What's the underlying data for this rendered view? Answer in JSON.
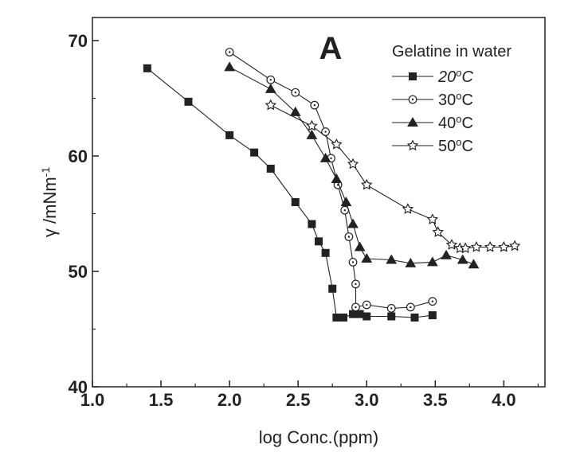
{
  "chart_data": {
    "type": "line",
    "panel_label": "A",
    "xlabel": "log Conc.(ppm)",
    "ylabel": "γ /mNm",
    "ylabel_sup": "-1",
    "xlim": [
      1.0,
      4.3
    ],
    "ylim": [
      40,
      72
    ],
    "x_ticks": [
      1.0,
      1.5,
      2.0,
      2.5,
      3.0,
      3.5,
      4.0
    ],
    "x_tick_labels": [
      "1.0",
      "1.5",
      "2.0",
      "2.5",
      "3.0",
      "3.5",
      "4.0"
    ],
    "y_ticks": [
      40,
      50,
      60,
      70
    ],
    "y_tick_labels": [
      "40",
      "50",
      "60",
      "70"
    ],
    "grid": false,
    "legend": {
      "title": "Gelatine in water",
      "position": "top-right"
    },
    "series": [
      {
        "name": "20",
        "name_sup": "o",
        "name_suffix": "C",
        "italic": true,
        "marker": "square-filled",
        "x": [
          1.4,
          1.7,
          2.0,
          2.18,
          2.3,
          2.48,
          2.6,
          2.65,
          2.7,
          2.75,
          2.78,
          2.83,
          2.9,
          2.95,
          3.0,
          3.18,
          3.35,
          3.48
        ],
        "y": [
          67.6,
          64.7,
          61.8,
          60.3,
          58.9,
          56.0,
          54.1,
          52.6,
          51.6,
          48.5,
          46.0,
          46.0,
          46.3,
          46.3,
          46.1,
          46.1,
          46.0,
          46.2
        ]
      },
      {
        "name": "30",
        "name_sup": "o",
        "name_suffix": "C",
        "italic": false,
        "marker": "circle-dot-open",
        "x": [
          2.0,
          2.3,
          2.48,
          2.62,
          2.7,
          2.74,
          2.79,
          2.84,
          2.87,
          2.9,
          2.92,
          2.92,
          3.0,
          3.18,
          3.32,
          3.48
        ],
        "y": [
          69.0,
          66.6,
          65.5,
          64.4,
          62.1,
          59.8,
          57.5,
          55.3,
          53.0,
          50.8,
          48.9,
          46.9,
          47.1,
          46.8,
          46.9,
          47.4
        ],
        "y_note": ""
      },
      {
        "name": "40",
        "name_sup": "o",
        "name_suffix": "C",
        "italic": false,
        "marker": "triangle-filled",
        "x": [
          2.0,
          2.3,
          2.48,
          2.6,
          2.7,
          2.78,
          2.85,
          2.9,
          2.95,
          3.0,
          3.18,
          3.32,
          3.48,
          3.58,
          3.7,
          3.78
        ],
        "y": [
          67.7,
          65.8,
          63.8,
          61.8,
          59.8,
          58.0,
          56.0,
          54.1,
          52.1,
          51.1,
          51.0,
          50.7,
          50.8,
          51.4,
          51.0,
          50.6
        ]
      },
      {
        "name": "50",
        "name_sup": "o",
        "name_suffix": "C",
        "italic": false,
        "marker": "star-open",
        "x": [
          2.3,
          2.6,
          2.78,
          2.9,
          3.0,
          3.3,
          3.48,
          3.52,
          3.62,
          3.68,
          3.72,
          3.8,
          3.9,
          4.0,
          4.08
        ],
        "y": [
          64.4,
          62.6,
          61.0,
          59.3,
          57.5,
          55.4,
          54.5,
          53.4,
          52.3,
          52.0,
          52.0,
          52.1,
          52.1,
          52.1,
          52.2
        ]
      }
    ]
  }
}
